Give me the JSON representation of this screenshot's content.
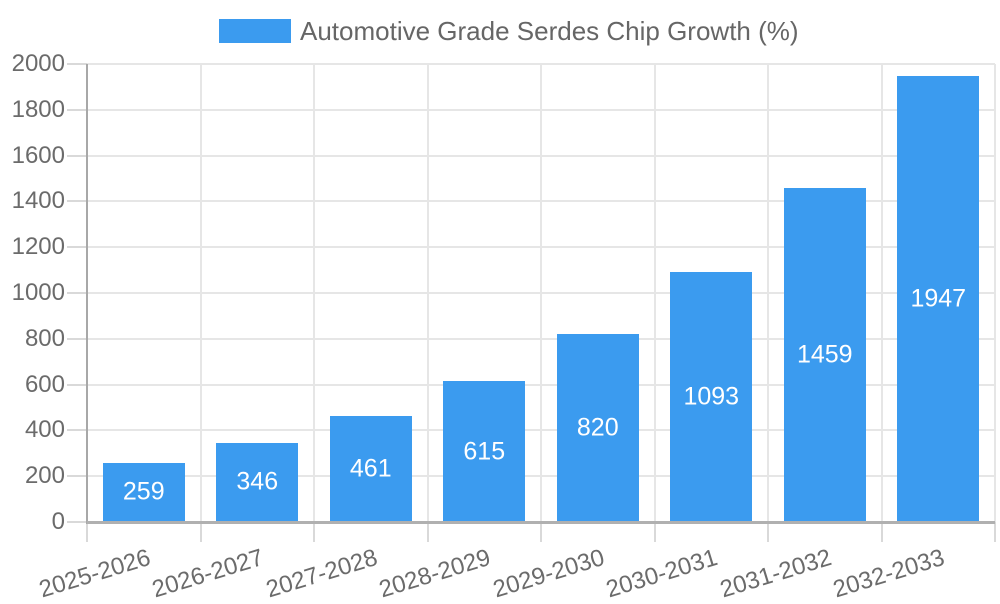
{
  "chart_data": {
    "type": "bar",
    "title": "Automotive Grade Serdes Chip Growth (%)",
    "legend": {
      "position": "top",
      "label": "Automotive Grade Serdes Chip Growth (%)"
    },
    "categories": [
      "2025-2026",
      "2026-2027",
      "2027-2028",
      "2028-2029",
      "2029-2030",
      "2030-2031",
      "2031-2032",
      "2032-2033"
    ],
    "values": [
      259,
      346,
      461,
      615,
      820,
      1093,
      1459,
      1947
    ],
    "value_labels": [
      "259",
      "346",
      "461",
      "615",
      "820",
      "1093",
      "1459",
      "1947"
    ],
    "xlabel": "",
    "ylabel": "",
    "ylim": [
      0,
      2000
    ],
    "ytick_step": 200,
    "ytick_labels": [
      "0",
      "200",
      "400",
      "600",
      "800",
      "1000",
      "1200",
      "1400",
      "1600",
      "1800",
      "2000"
    ],
    "grid": true,
    "x_labels_rotated": true,
    "colors": {
      "bar": "#3b9bef",
      "value_label": "#ffffff",
      "tick_text": "#6b6b6b",
      "legend_text": "#666666",
      "grid_line": "#e6e6e6",
      "tick_mark": "#d9d9d9",
      "y_axis_line": "#a8a8a8",
      "x_axis_line": "#b0b0b0",
      "background": "#ffffff"
    }
  }
}
